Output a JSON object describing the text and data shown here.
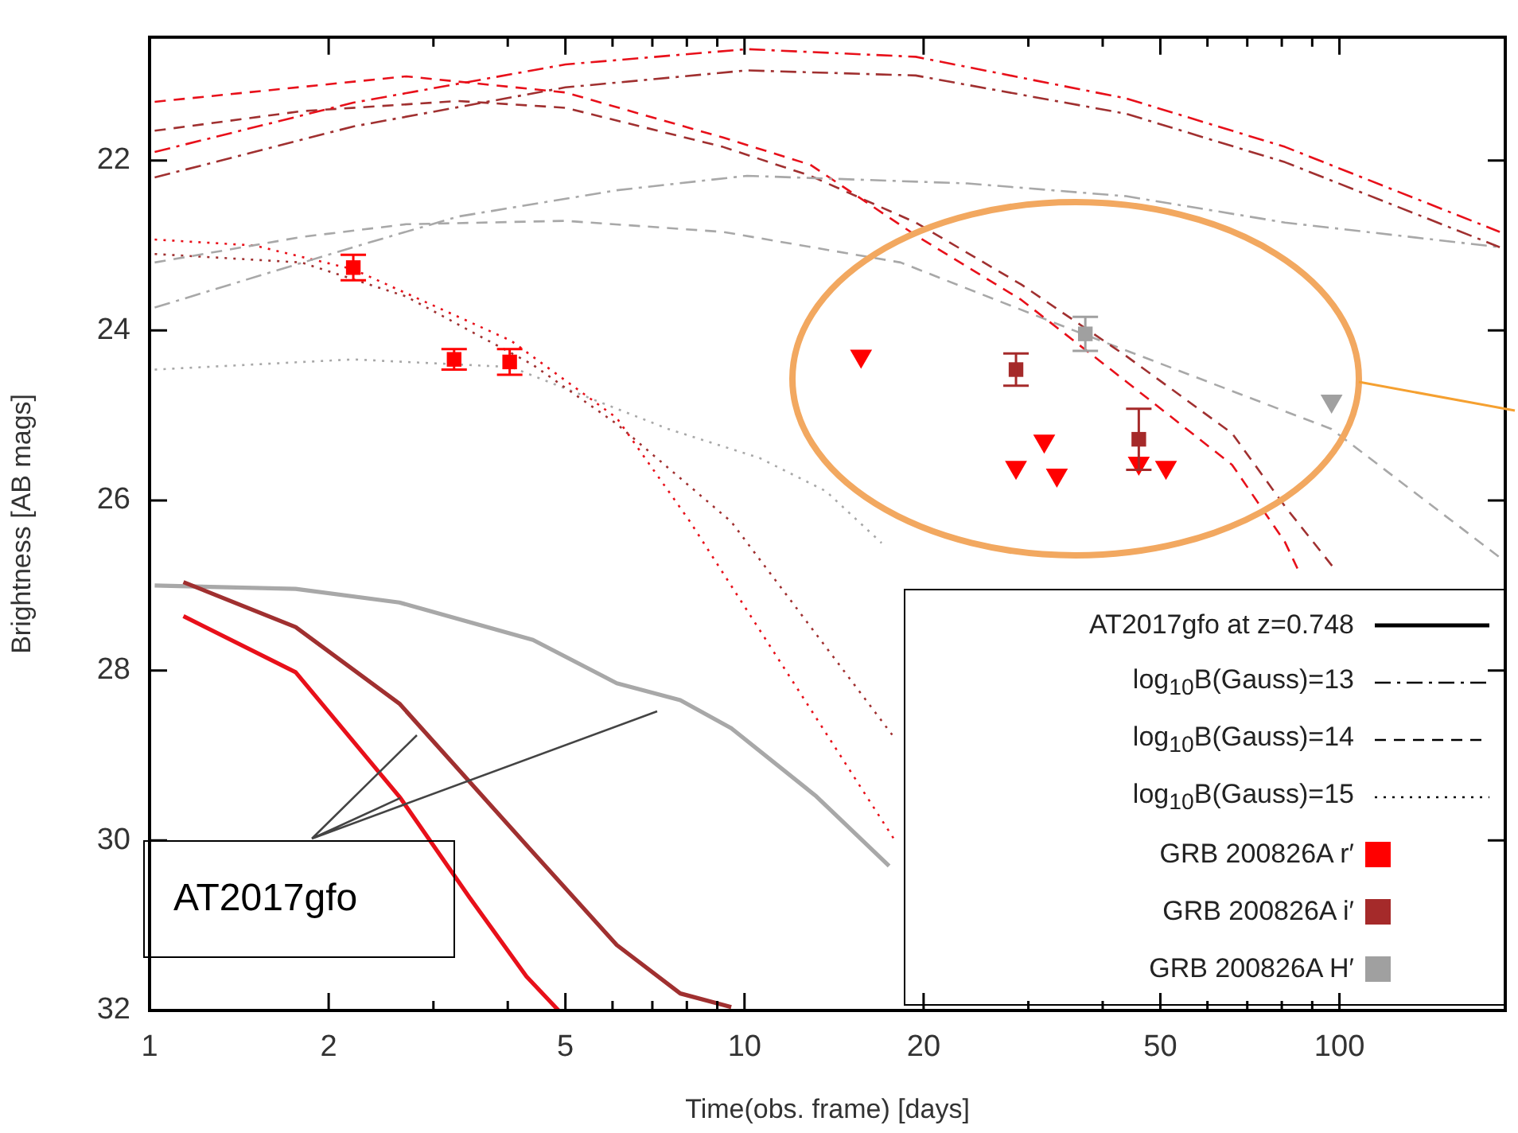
{
  "chart_data": {
    "type": "line",
    "xlabel": "Time(obs. frame) [days]",
    "ylabel": "Brightness [AB mags]",
    "log": "x",
    "grid": false,
    "legend": "bottom right",
    "xlim": [
      1,
      190
    ],
    "ylim": [
      32,
      20.55
    ],
    "xticks": [
      1,
      2,
      {
        "value": 3,
        "label": null
      },
      {
        "value": 4,
        "label": null
      },
      5,
      {
        "value": 6,
        "label": null
      },
      {
        "value": 7,
        "label": null
      },
      {
        "value": 8,
        "label": null
      },
      {
        "value": 9,
        "label": null
      },
      10,
      20,
      {
        "value": 30,
        "label": null
      },
      {
        "value": 40,
        "label": null
      },
      50,
      {
        "value": 60,
        "label": null
      },
      {
        "value": 70,
        "label": null
      },
      {
        "value": 80,
        "label": null
      },
      {
        "value": 90,
        "label": null
      },
      100
    ],
    "yticks": [
      22,
      24,
      26,
      28,
      30,
      32
    ],
    "annotations": [
      {
        "text": "AT2017gfo",
        "x": 2.64,
        "y": 29.5
      },
      "AT2017gfo at z=0.748",
      "log$_{10}$B(Gauss)=13",
      "log$_{10}$B(Gauss)=14",
      "log$_{10}$B(Gauss)=15"
    ],
    "series": [
      {
        "line_style": "solid",
        "marker": "none",
        "color": "#e8101a",
        "x": [
          1.14,
          1.76,
          2.64,
          3.45,
          4.3,
          4.87
        ],
        "values": [
          27.36,
          28.02,
          29.5,
          30.67,
          31.6,
          32.0
        ]
      },
      {
        "line_style": "solid",
        "marker": "none",
        "color": "#a03030",
        "x": [
          1.14,
          1.76,
          2.63,
          4.41,
          6.1,
          7.8,
          9.5
        ],
        "values": [
          26.96,
          27.49,
          28.39,
          30.14,
          31.23,
          31.8,
          31.96
        ]
      },
      {
        "line_style": "solid",
        "marker": "none",
        "color": "#a8a8a8",
        "x": [
          1.02,
          1.76,
          2.63,
          4.41,
          6.1,
          7.8,
          9.5,
          13.2,
          17.5
        ],
        "values": [
          27.0,
          27.04,
          27.2,
          27.64,
          28.15,
          28.35,
          28.68,
          29.48,
          30.3
        ]
      },
      {
        "line_style": "dashdot",
        "marker": "none",
        "color": "#e8101a",
        "x": [
          1.02,
          2.2,
          5,
          10.1,
          19.4,
          43.8,
          81,
          186
        ],
        "values": [
          21.9,
          21.32,
          20.87,
          20.69,
          20.78,
          21.27,
          21.84,
          22.84
        ]
      },
      {
        "line_style": "dashdot",
        "marker": "none",
        "color": "#a03030",
        "x": [
          1.02,
          2.2,
          5,
          10.1,
          19.4,
          43.8,
          81,
          186
        ],
        "values": [
          22.2,
          21.6,
          21.14,
          20.94,
          21.0,
          21.45,
          22.02,
          23.02
        ]
      },
      {
        "line_style": "dashdot",
        "marker": "none",
        "color": "#a8a8a8",
        "x": [
          1.02,
          2.2,
          3.3,
          6.1,
          10.1,
          23.7,
          43.8,
          81,
          186
        ],
        "values": [
          23.73,
          23.02,
          22.66,
          22.35,
          22.18,
          22.27,
          22.42,
          22.73,
          23.02
        ]
      },
      {
        "line_style": "dashed",
        "marker": "none",
        "color": "#e8101a",
        "x": [
          1.02,
          2.7,
          5,
          9.2,
          12.9,
          19.4,
          29.2,
          43.8,
          66,
          81,
          85
        ],
        "values": [
          21.31,
          21.01,
          21.2,
          21.73,
          22.05,
          22.88,
          23.64,
          24.6,
          25.58,
          26.49,
          26.8
        ]
      },
      {
        "line_style": "dashed",
        "marker": "none",
        "color": "#a03030",
        "x": [
          1.02,
          1.8,
          3.3,
          5,
          9.2,
          12.9,
          19.4,
          29.2,
          43.8,
          66,
          81,
          98
        ],
        "values": [
          21.65,
          21.42,
          21.3,
          21.38,
          21.84,
          22.18,
          22.73,
          23.46,
          24.3,
          25.21,
          26.07,
          26.8
        ]
      },
      {
        "line_style": "dashed",
        "marker": "none",
        "color": "#a8a8a8",
        "x": [
          1.02,
          1.8,
          2.7,
          5,
          9.2,
          18.3,
          35.8,
          97,
          186
        ],
        "values": [
          23.2,
          22.9,
          22.75,
          22.71,
          22.84,
          23.2,
          24.0,
          25.16,
          26.67
        ]
      },
      {
        "line_style": "dotted",
        "marker": "none",
        "color": "#e8101a",
        "x": [
          1.02,
          1.5,
          2.2,
          4.05,
          6.1,
          8.1,
          17.9
        ],
        "values": [
          22.93,
          23.0,
          23.28,
          24.12,
          25.03,
          26.25,
          30.0
        ]
      },
      {
        "line_style": "dotted",
        "marker": "none",
        "color": "#a03030",
        "x": [
          1.02,
          1.8,
          2.7,
          4.4,
          6.1,
          9.5,
          17.9
        ],
        "values": [
          23.1,
          23.2,
          23.6,
          24.4,
          25.1,
          26.25,
          28.8
        ]
      },
      {
        "line_style": "dotted",
        "marker": "none",
        "color": "#a8a8a8",
        "x": [
          1.02,
          2.2,
          4.05,
          7.45,
          10.6,
          13.7,
          17
        ],
        "values": [
          24.46,
          24.34,
          24.43,
          25.16,
          25.5,
          25.89,
          26.5
        ]
      },
      {
        "name": "GRB 200826A r′",
        "type": "scatter",
        "marker": "square",
        "color": "#ff0000",
        "x": [
          2.2,
          3.25,
          4.03
        ],
        "values": [
          23.26,
          24.34,
          24.37
        ],
        "errors": [
          0.15,
          0.12,
          0.15
        ]
      },
      {
        "type": "scatter",
        "marker": "triangle",
        "color": "#ff0000",
        "x": [
          15.7,
          28.6,
          31.9,
          33.5,
          46,
          51.1
        ],
        "values": [
          24.3,
          25.61,
          25.3,
          25.7,
          25.56,
          25.61
        ]
      },
      {
        "name": "GRB 200826A i′",
        "type": "scatter",
        "marker": "square",
        "color": "#a52a2a",
        "x": [
          28.6,
          46
        ],
        "values": [
          24.46,
          25.28
        ],
        "errors": [
          0.19,
          0.36
        ]
      },
      {
        "name": "GRB 200826A H′",
        "type": "scatter",
        "marker": "square",
        "color": "#a0a0a0",
        "x": [
          37.4
        ],
        "values": [
          24.04
        ],
        "errors": [
          0.2
        ]
      },
      {
        "type": "scatter",
        "marker": "triangle",
        "color": "#a0a0a0",
        "x": [
          97
        ],
        "values": [
          24.83
        ]
      }
    ]
  }
}
